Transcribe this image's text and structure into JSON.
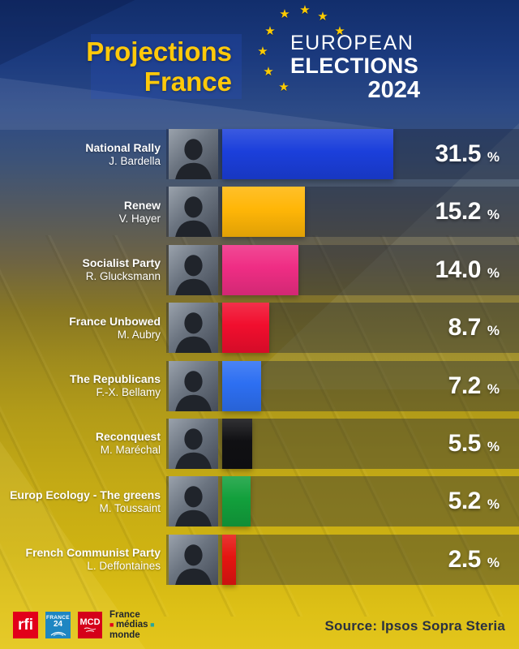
{
  "header": {
    "title_line1": "Projections",
    "title_line2": "France",
    "eu_logo": {
      "line1": "EUROPEAN",
      "line2": "ELECTIONS",
      "line3": "2024",
      "star_color": "#ffcc00"
    }
  },
  "chart_data": {
    "type": "bar",
    "orientation": "horizontal",
    "title": "Projections France",
    "subtitle": "European Elections 2024",
    "unit": "%",
    "xlim": [
      0,
      33
    ],
    "categories": [
      "National Rally",
      "Renew",
      "Socialist Party",
      "France Unbowed",
      "The Republicans",
      "Reconquest",
      "Europ Ecology - The greens",
      "French Communist Party"
    ],
    "values": [
      31.5,
      15.2,
      14.0,
      8.7,
      7.2,
      5.5,
      5.2,
      2.5
    ],
    "bars": [
      {
        "party": "National Rally",
        "candidate": "J. Bardella",
        "value": 31.5,
        "value_label": "31.5",
        "color": "#1b3fdb"
      },
      {
        "party": "Renew",
        "candidate": "V. Hayer",
        "value": 15.2,
        "value_label": "15.2",
        "color": "#ffb607"
      },
      {
        "party": "Socialist Party",
        "candidate": "R. Glucksmann",
        "value": 14.0,
        "value_label": "14.0",
        "color": "#ef2d84"
      },
      {
        "party": "France Unbowed",
        "candidate": "M. Aubry",
        "value": 8.7,
        "value_label": "8.7",
        "color": "#f10e2e"
      },
      {
        "party": "The Republicans",
        "candidate": "F.-X. Bellamy",
        "value": 7.2,
        "value_label": "7.2",
        "color": "#2d6ff2"
      },
      {
        "party": "Reconquest",
        "candidate": "M. Maréchal",
        "value": 5.5,
        "value_label": "5.5",
        "color": "#101013"
      },
      {
        "party": "Europ Ecology - The greens",
        "candidate": "M. Toussaint",
        "value": 5.2,
        "value_label": "5.2",
        "color": "#12a03c"
      },
      {
        "party": "French Communist Party",
        "candidate": "L. Deffontaines",
        "value": 2.5,
        "value_label": "2.5",
        "color": "#e51511"
      }
    ],
    "source": "Source: Ipsos Sopra Steria"
  },
  "footer": {
    "logos": {
      "rfi": "rfi",
      "france24_top": "FRANCE",
      "france24_num": "24",
      "mcd": "MCD",
      "fmm_line1": "France",
      "fmm_line2": "médias",
      "fmm_line3": "monde"
    },
    "source": "Source: Ipsos Sopra Steria"
  },
  "colors": {
    "accent_yellow": "#ffc90a",
    "star_yellow": "#ffcc00",
    "row_band": "rgba(27,36,56,0.40)",
    "rfi_red": "#e2001a",
    "france24_blue": "#1e86c2",
    "mcd_red": "#d50019",
    "fmm_teal": "#2aa79b",
    "source_text": "#2a3140"
  }
}
